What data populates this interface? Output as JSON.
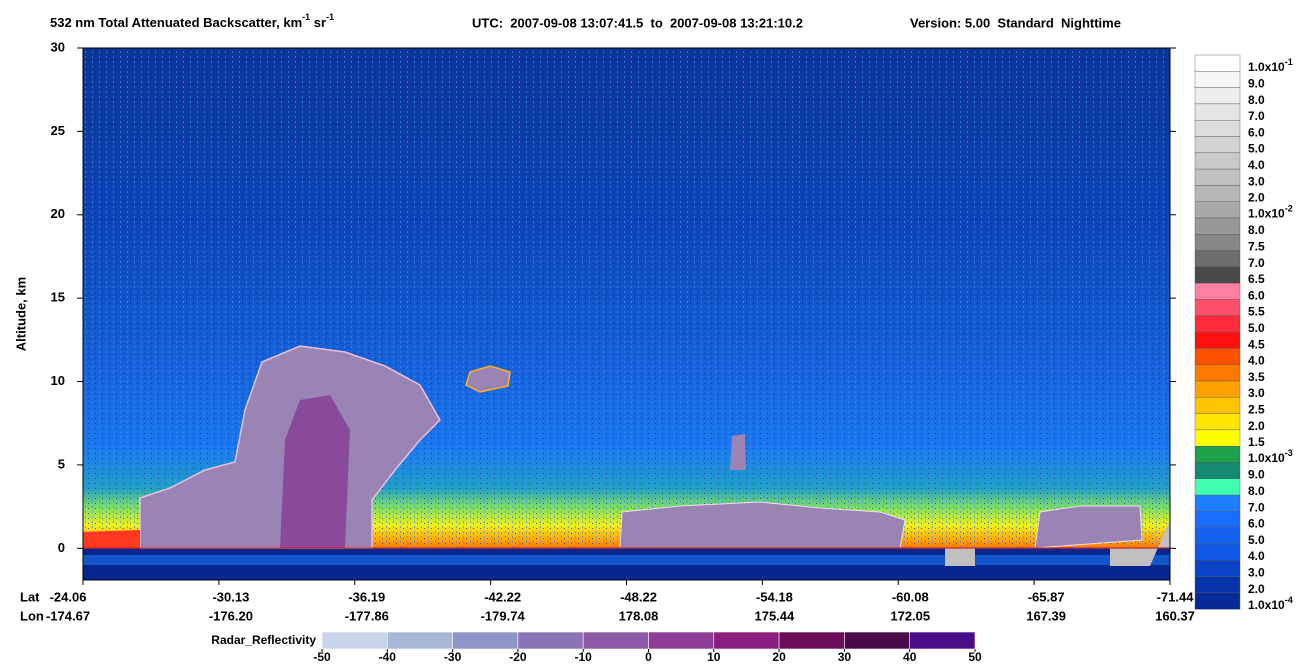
{
  "chart_data": {
    "type": "curtain",
    "title_parts": {
      "product": "532 nm Total Attenuated Backscatter, km",
      "unit_exp_1": "-1",
      "unit_sr": " sr",
      "unit_exp_2": "-1",
      "utc": "UTC:  2007-09-08 13:07:41.5  to  2007-09-08 13:21:10.2",
      "version": "Version: 5.00  Standard  Nighttime"
    },
    "y_label": "Altitude, km",
    "ylim": [
      -1.9,
      30
    ],
    "yticks": [
      0,
      5,
      10,
      15,
      20,
      25,
      30
    ],
    "x_rows": [
      {
        "name": "Lat",
        "labels": [
          "-24.06",
          "-30.13",
          "-36.19",
          "-42.22",
          "-48.22",
          "-54.18",
          "-60.08",
          "-65.87",
          "-71.44"
        ]
      },
      {
        "name": "Lon",
        "labels": [
          "-174.67",
          "-176.20",
          "-177.86",
          "-179.74",
          "178.08",
          "175.44",
          "172.05",
          "167.39",
          "160.37"
        ]
      }
    ],
    "colorbar": {
      "labels": [
        {
          "base": "1.0x10",
          "exp": "-1"
        },
        "9.0",
        "8.0",
        "7.0",
        "6.0",
        "5.0",
        "4.0",
        "3.0",
        "2.0",
        {
          "base": "1.0x10",
          "exp": "-2"
        },
        "8.0",
        "7.5",
        "7.0",
        "6.5",
        "6.0",
        "5.5",
        "5.0",
        "4.5",
        "4.0",
        "3.5",
        "3.0",
        "2.5",
        "2.0",
        "1.5",
        {
          "base": "1.0x10",
          "exp": "-3"
        },
        "9.0",
        "8.0",
        "7.0",
        "6.0",
        "5.0",
        "4.0",
        "3.0",
        "2.0",
        {
          "base": "1.0x10",
          "exp": "-4"
        }
      ],
      "colors": [
        "#ffffff",
        "#f6f6f6",
        "#eeeeee",
        "#e5e5e5",
        "#dcdcdc",
        "#d3d3d3",
        "#cacaca",
        "#c1c1c1",
        "#b7b7b7",
        "#a9a9a9",
        "#989898",
        "#878787",
        "#6d6d6d",
        "#4a4a4a",
        "#ff80a0",
        "#ff4f6a",
        "#ff2a3a",
        "#ff1010",
        "#ff5000",
        "#ff7800",
        "#ffa000",
        "#ffc400",
        "#ffe600",
        "#ffff00",
        "#1fa04a",
        "#168a70",
        "#40ffb0",
        "#1e7cff",
        "#1a6eff",
        "#1463f0",
        "#0f58e8",
        "#0a44c8",
        "#0633a8",
        "#052a98"
      ]
    },
    "radar_bar": {
      "label": "Radar_Reflectivity",
      "ticks": [
        -50,
        -40,
        -30,
        -20,
        -10,
        0,
        10,
        20,
        30,
        40,
        50
      ],
      "colors": [
        "#c9d5e8",
        "#a8b8d8",
        "#8c96c8",
        "#8a75b8",
        "#8d58a8",
        "#8e3c98",
        "#8a1e80",
        "#6a0c5a",
        "#4a0a4a",
        "#4b0c8c"
      ]
    }
  }
}
